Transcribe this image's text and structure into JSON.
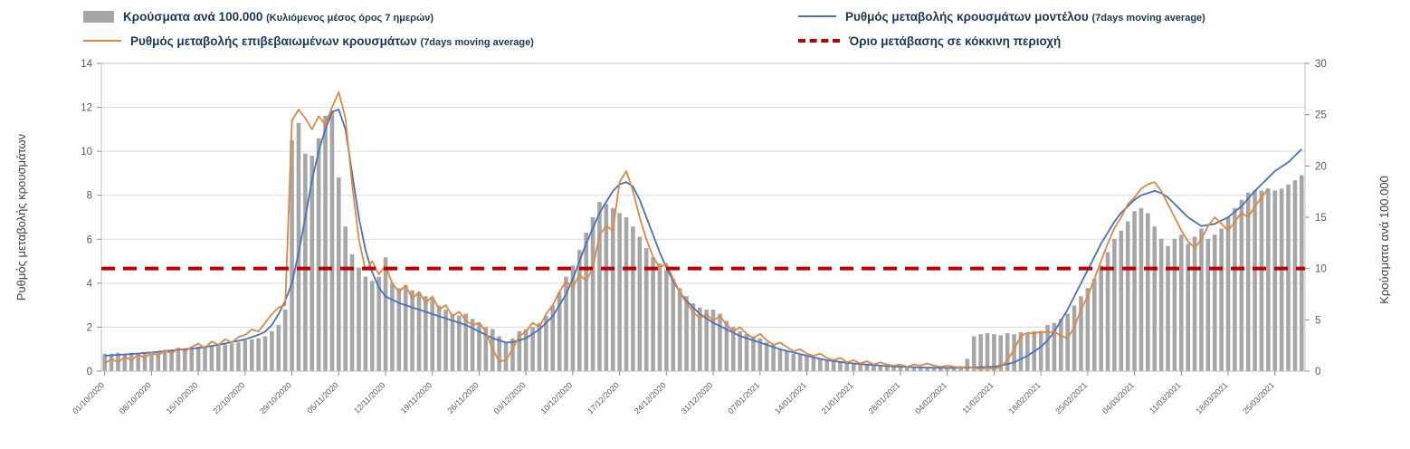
{
  "legend": {
    "items": [
      {
        "label": "Κρούσματα ανά 100.000",
        "suffix": "(Κυλιόμενος μέσος όρος 7 ημερών)",
        "marker": "bar-swatch",
        "color": "#a6a6a6"
      },
      {
        "label": "Ρυθμός μεταβολής κρουσμάτων μοντέλου",
        "suffix": "(7days moving average)",
        "marker": "line",
        "color": "#4472c4"
      },
      {
        "label": "Ρυθμός μεταβολής επιβεβαιωμένων κρουσμάτων",
        "suffix": "(7days moving average)",
        "marker": "line",
        "color": "#e0883f"
      },
      {
        "label": "Όριο μετάβασης σε κόκκινη περιοχή",
        "suffix": "",
        "marker": "dashed",
        "color": "#c00000"
      }
    ]
  },
  "chart_data": {
    "type": "bar",
    "subtype": "combo-bar-line-dual-axis",
    "title": "",
    "x_daily_count": 180,
    "x_tick_every_days": 7,
    "x_tick_labels": [
      "01/10/2020",
      "08/10/2020",
      "15/10/2020",
      "22/10/2020",
      "29/10/2020",
      "05/11/2020",
      "12/11/2020",
      "19/11/2020",
      "26/11/2020",
      "03/12/2020",
      "10/12/2020",
      "17/12/2020",
      "24/12/2020",
      "31/12/2020",
      "07/01/2021",
      "14/01/2021",
      "21/01/2021",
      "28/01/2021",
      "04/02/2021",
      "11/02/2021",
      "18/02/2021",
      "25/02/2021",
      "04/03/2021",
      "11/03/2021",
      "18/03/2021",
      "25/03/2021"
    ],
    "left_axis": {
      "title": "Ρυθμός μεταβολής κρουσμάτων",
      "min": 0,
      "max": 14,
      "ticks": [
        0,
        2,
        4,
        6,
        8,
        10,
        12,
        14
      ]
    },
    "right_axis": {
      "title": "Κρούσματα ανά 100.000",
      "min": 0,
      "max": 30,
      "ticks": [
        0,
        5,
        10,
        15,
        20,
        25,
        30
      ]
    },
    "threshold": {
      "label": "Όριο μετάβασης σε κόκκινη περιοχή",
      "value_right_axis": 10,
      "color": "#c00000",
      "style": "dashed"
    },
    "grid": "horizontal",
    "legend_position": "top",
    "series": [
      {
        "name": "Κρούσματα ανά 100.000 (Κυλιόμενος μέσος όρος 7 ημερών)",
        "type": "bar",
        "axis": "right",
        "color": "#a6a6a6",
        "values": [
          1.7,
          1.7,
          1.8,
          1.7,
          1.8,
          1.8,
          1.8,
          1.9,
          1.9,
          2.0,
          2.0,
          2.1,
          2.1,
          2.2,
          2.4,
          2.4,
          2.5,
          2.5,
          2.6,
          2.7,
          2.8,
          3.0,
          3.1,
          3.2,
          3.4,
          3.9,
          4.5,
          6.0,
          22.5,
          24.2,
          21.2,
          21.0,
          22.7,
          24.9,
          25.3,
          18.9,
          14.1,
          11.4,
          10.1,
          9.2,
          8.8,
          9.2,
          11.1,
          8.6,
          8.1,
          8.4,
          7.9,
          7.7,
          7.3,
          7.1,
          6.4,
          6.0,
          5.6,
          5.4,
          5.6,
          5.1,
          4.7,
          4.3,
          4.1,
          3.4,
          2.8,
          3.2,
          3.9,
          4.1,
          4.3,
          4.7,
          5.4,
          6.4,
          7.7,
          9.2,
          10.3,
          11.8,
          13.5,
          15.0,
          16.5,
          16.3,
          15.9,
          15.4,
          15.0,
          14.1,
          13.1,
          12.0,
          11.1,
          10.5,
          9.9,
          9.0,
          8.1,
          7.3,
          6.6,
          6.2,
          6.0,
          6.0,
          5.6,
          4.9,
          4.3,
          3.9,
          3.6,
          3.4,
          3.2,
          2.8,
          2.6,
          2.1,
          1.9,
          1.7,
          1.6,
          1.5,
          1.3,
          1.2,
          1.1,
          1.0,
          0.9,
          0.8,
          0.8,
          0.6,
          0.6,
          0.6,
          0.6,
          0.5,
          0.5,
          0.5,
          0.5,
          0.4,
          0.4,
          0.4,
          0.4,
          0.4,
          0.4,
          0.4,
          0.5,
          1.2,
          3.4,
          3.6,
          3.7,
          3.6,
          3.5,
          3.7,
          3.6,
          3.8,
          3.7,
          3.9,
          3.9,
          4.5,
          4.7,
          5.1,
          5.6,
          6.4,
          7.3,
          8.1,
          9.0,
          10.3,
          11.6,
          12.9,
          13.7,
          14.6,
          15.6,
          15.9,
          15.4,
          14.1,
          12.9,
          12.2,
          12.9,
          13.3,
          12.4,
          13.1,
          13.9,
          12.9,
          13.3,
          13.9,
          15.0,
          15.9,
          16.7,
          17.4,
          17.6,
          17.6,
          17.8,
          17.6,
          17.8,
          18.2,
          18.6,
          19.1
        ]
      },
      {
        "name": "Ρυθμός μεταβολής κρουσμάτων μοντέλου (7days moving average)",
        "type": "line",
        "axis": "left",
        "color": "#4472c4",
        "values": [
          0.7,
          0.72,
          0.74,
          0.76,
          0.78,
          0.8,
          0.83,
          0.85,
          0.88,
          0.91,
          0.94,
          0.97,
          1.0,
          1.03,
          1.05,
          1.1,
          1.15,
          1.2,
          1.26,
          1.32,
          1.38,
          1.45,
          1.55,
          1.65,
          1.8,
          2.1,
          2.6,
          3.2,
          4.0,
          5.4,
          7.0,
          8.7,
          10.0,
          11.0,
          11.8,
          11.9,
          11.0,
          9.0,
          7.0,
          5.5,
          4.5,
          3.8,
          3.4,
          3.25,
          3.1,
          3.0,
          2.9,
          2.8,
          2.7,
          2.6,
          2.5,
          2.4,
          2.3,
          2.2,
          2.1,
          1.95,
          1.8,
          1.65,
          1.5,
          1.4,
          1.3,
          1.32,
          1.4,
          1.5,
          1.7,
          1.9,
          2.2,
          2.5,
          3.0,
          3.5,
          4.2,
          5.0,
          5.8,
          6.5,
          7.2,
          7.7,
          8.2,
          8.5,
          8.6,
          8.4,
          7.8,
          7.0,
          6.2,
          5.4,
          4.7,
          4.1,
          3.6,
          3.2,
          2.9,
          2.6,
          2.4,
          2.2,
          2.05,
          1.9,
          1.75,
          1.6,
          1.5,
          1.4,
          1.3,
          1.2,
          1.1,
          1.0,
          0.92,
          0.85,
          0.78,
          0.7,
          0.63,
          0.56,
          0.5,
          0.46,
          0.42,
          0.38,
          0.35,
          0.32,
          0.3,
          0.28,
          0.25,
          0.23,
          0.21,
          0.2,
          0.19,
          0.18,
          0.17,
          0.16,
          0.16,
          0.15,
          0.15,
          0.15,
          0.15,
          0.16,
          0.17,
          0.18,
          0.19,
          0.2,
          0.25,
          0.32,
          0.4,
          0.55,
          0.7,
          0.9,
          1.1,
          1.4,
          1.8,
          2.3,
          2.8,
          3.4,
          4.0,
          4.6,
          5.2,
          5.8,
          6.3,
          6.8,
          7.2,
          7.5,
          7.8,
          8.0,
          8.1,
          8.2,
          8.1,
          7.9,
          7.6,
          7.3,
          7.0,
          6.8,
          6.6,
          6.65,
          6.7,
          6.85,
          7.0,
          7.25,
          7.5,
          7.85,
          8.2,
          8.5,
          8.8,
          9.1,
          9.3,
          9.5,
          9.8,
          10.1
        ]
      },
      {
        "name": "Ρυθμός μεταβολής επιβεβαιωμένων κρουσμάτων (7days moving average)",
        "type": "line",
        "axis": "left",
        "color": "#e0883f",
        "values": [
          0.35,
          0.55,
          0.4,
          0.65,
          0.5,
          0.75,
          0.6,
          0.85,
          0.7,
          0.95,
          0.8,
          1.05,
          0.9,
          1.1,
          1.25,
          1.05,
          1.35,
          1.2,
          1.45,
          1.3,
          1.55,
          1.65,
          1.9,
          1.8,
          2.2,
          2.6,
          2.9,
          3.0,
          11.4,
          11.9,
          11.5,
          11.0,
          11.6,
          11.2,
          12.0,
          12.7,
          11.5,
          8.5,
          6.0,
          4.6,
          5.0,
          4.4,
          4.8,
          4.0,
          3.6,
          3.9,
          3.3,
          3.6,
          3.1,
          3.4,
          2.8,
          3.0,
          2.5,
          2.7,
          2.3,
          2.1,
          2.2,
          1.8,
          1.0,
          0.45,
          0.5,
          1.0,
          1.6,
          1.8,
          2.2,
          2.0,
          2.6,
          3.0,
          3.6,
          4.1,
          3.8,
          4.4,
          4.1,
          4.7,
          6.2,
          6.6,
          6.4,
          8.6,
          9.1,
          8.2,
          7.0,
          6.0,
          5.2,
          4.7,
          4.9,
          4.2,
          3.6,
          3.1,
          2.7,
          2.4,
          2.6,
          2.3,
          2.5,
          2.1,
          1.8,
          2.0,
          1.7,
          1.5,
          1.7,
          1.4,
          1.2,
          1.3,
          1.1,
          0.9,
          1.0,
          0.8,
          0.7,
          0.8,
          0.6,
          0.5,
          0.6,
          0.4,
          0.5,
          0.35,
          0.45,
          0.3,
          0.4,
          0.3,
          0.25,
          0.3,
          0.2,
          0.3,
          0.25,
          0.35,
          0.25,
          0.2,
          0.25,
          0.2,
          0.15,
          0.2,
          0.15,
          0.1,
          0.15,
          0.1,
          0.2,
          0.5,
          1.0,
          1.6,
          1.75,
          1.7,
          1.8,
          1.75,
          1.8,
          1.6,
          1.5,
          2.0,
          2.8,
          3.4,
          4.2,
          5.0,
          5.8,
          6.5,
          7.0,
          7.6,
          7.9,
          8.3,
          8.5,
          8.6,
          8.2,
          7.6,
          7.0,
          6.4,
          5.9,
          5.6,
          6.0,
          6.6,
          7.0,
          6.7,
          6.4,
          6.8,
          7.2,
          7.0,
          7.5,
          7.9,
          8.3
        ]
      }
    ]
  }
}
